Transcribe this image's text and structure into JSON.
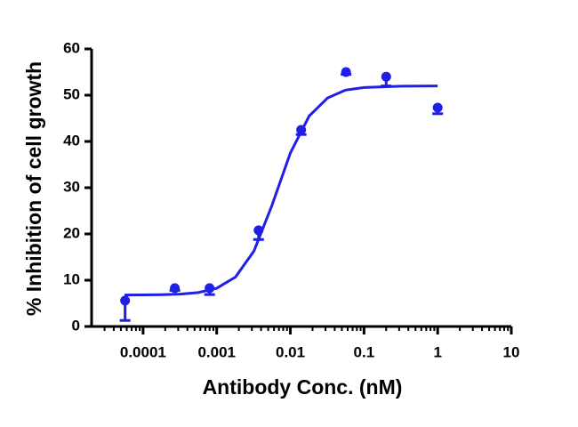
{
  "chart_data": {
    "type": "scatter",
    "x_label": "Antibody Conc. (nM)",
    "y_label": "% Inhibition of cell growth",
    "x": [
      5.7e-05,
      0.00027,
      0.0008,
      0.0037,
      0.014,
      0.057,
      0.2,
      1
    ],
    "values": [
      5.6,
      8.3,
      8.3,
      20.8,
      42.5,
      55.0,
      54.0,
      47.3
    ],
    "errors": [
      4.3,
      0.5,
      1.4,
      2.0,
      1.0,
      0.5,
      2.0,
      1.3
    ],
    "color": "#1f1fe6",
    "fit": {
      "x": [
        5.6e-05,
        0.0001,
        0.00018,
        0.00032,
        0.00056,
        0.001,
        0.0018,
        0.0032,
        0.0056,
        0.01,
        0.018,
        0.032,
        0.056,
        0.1,
        0.32,
        1
      ],
      "values": [
        6.81,
        6.82,
        6.87,
        6.99,
        7.33,
        8.26,
        10.7,
        16.3,
        26.1,
        37.5,
        45.5,
        49.4,
        51.1,
        51.66,
        51.95,
        52.0
      ]
    },
    "x_log": true,
    "xlim": [
      2e-05,
      10
    ],
    "xticks": [
      0.0001,
      0.001,
      0.01,
      0.1,
      1,
      10
    ],
    "ylim": [
      0,
      60
    ],
    "yticks": [
      0,
      10,
      20,
      30,
      40,
      50,
      60
    ],
    "grid": false
  }
}
